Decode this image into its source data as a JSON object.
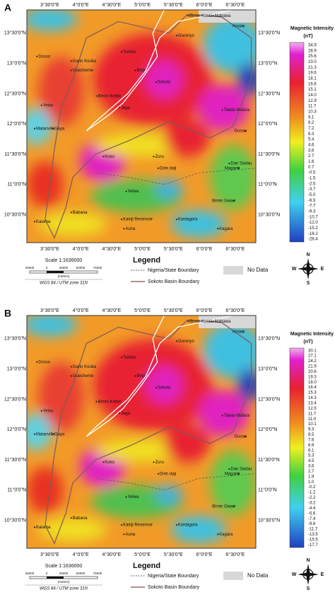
{
  "panels": [
    {
      "label": "A",
      "longitude_labels": [
        "3°30'0\"E",
        "4°0'0\"E",
        "4°30'0\"E",
        "5°0'0\"E",
        "5°30'0\"E",
        "6°0'0\"E",
        "6°30'0\"E"
      ],
      "latitude_labels": [
        "13°30'0\"N",
        "13°0'0\"N",
        "12°30'0\"N",
        "12°0'0\"N",
        "11°30'0\"N",
        "11°0'0\"N",
        "10°30'0\"N"
      ],
      "places": [
        "Birnin Konni",
        "Mahawa",
        "Amani",
        "Goronyo",
        "Dosso",
        "Garin Kouka",
        "Tombo",
        "Binji",
        "Sokoto",
        "Guecheme",
        "Talata Mafara",
        "Birnin Kebbi",
        "Yelou",
        "Jega",
        "Gusau",
        "Malanville",
        "Gaya",
        "Magami",
        "Koko",
        "Zuru",
        "Dan Sadau",
        "Dirin daji",
        "Yelwa",
        "Birnin Gwari",
        "Babana",
        "Kainji Reservoir",
        "Kontagora",
        "Kaiama",
        "Auna",
        "Kagara"
      ],
      "colorbar": {
        "title": "Magnetic Intensity",
        "unit": "(nT)",
        "labels": [
          "34.9",
          "28.9",
          "25.6",
          "23.0",
          "21.3",
          "19.6",
          "18.1",
          "16.6",
          "15.1",
          "14.0",
          "12.9",
          "11.7",
          "10.3",
          "9.1",
          "8.2",
          "7.2",
          "6.3",
          "5.4",
          "4.6",
          "3.6",
          "2.7",
          "1.6",
          "0.7",
          "-0.5",
          "-1.5",
          "-2.5",
          "-3.7",
          "-5.0",
          "-6.5",
          "-7.7",
          "-9.3",
          "-10.7",
          "-12.0",
          "-15.2",
          "-18.2",
          "-26.4"
        ]
      },
      "scale": {
        "text": "Scale 1:1636000",
        "ticks": [
          "25000",
          "0",
          "25000",
          "50000",
          "75000"
        ],
        "units": "(meters)",
        "projection": "WGS 84 / UTM zone 31N"
      },
      "legend": {
        "title": "Legend",
        "items": [
          "Nigeria/State Boundary",
          "Sokoto Basin Boundary",
          "No Data"
        ]
      },
      "north_arrow": [
        "N",
        "E",
        "S",
        "W"
      ]
    },
    {
      "label": "B",
      "longitude_labels": [
        "3°30'0\"E",
        "4°0'0\"E",
        "4°30'0\"E",
        "5°0'0\"E",
        "5°30'0\"E",
        "6°0'0\"E",
        "6°30'0\"E"
      ],
      "latitude_labels": [
        "13°30'0\"N",
        "13°0'0\"N",
        "12°30'0\"N",
        "12°0'0\"N",
        "11°30'0\"N",
        "11°0'0\"N",
        "10°30'0\"N"
      ],
      "places": [
        "Birnin Konni",
        "Mahawa",
        "Amani",
        "Goronyo",
        "Dosso",
        "Garin Kouka",
        "Tombo",
        "Binji",
        "Sokoto",
        "Guecheme",
        "Talata Mafara",
        "Birnin Kebbi",
        "Yelou",
        "Jega",
        "Gusau",
        "Malanville",
        "Gaya",
        "Magami",
        "Koko",
        "Zuru",
        "Dan Sadau",
        "Dirin daji",
        "Yelwa",
        "Birnin Gwari",
        "Babana",
        "Kainji Reservoir",
        "Kontagora",
        "Kaiama",
        "Auna",
        "Kagara"
      ],
      "colorbar": {
        "title": "Magnetic Intensity",
        "unit": "(nT)",
        "labels": [
          "30.1",
          "27.1",
          "24.2",
          "21.9",
          "20.6",
          "19.3",
          "18.0",
          "16.4",
          "15.3",
          "14.3",
          "13.4",
          "12.5",
          "11.7",
          "11.0",
          "10.1",
          "9.3",
          "8.5",
          "7.6",
          "6.9",
          "6.1",
          "5.3",
          "4.5",
          "3.6",
          "2.7",
          "1.9",
          "1.0",
          "-0.2",
          "-1.2",
          "-2.2",
          "-3.2",
          "-4.4",
          "-5.6",
          "-7.4",
          "-9.6",
          "-11.7",
          "-13.5",
          "-15.5",
          "-17.7"
        ]
      },
      "scale": {
        "text": "Scale 1:1636000",
        "ticks": [
          "25000",
          "0",
          "25000",
          "50000",
          "75000"
        ],
        "units": "(meters)",
        "projection": "WGS 84 / UTM zone 31N"
      },
      "legend": {
        "title": "Legend",
        "items": [
          "Nigeria/State Boundary",
          "Sokoto Basin Boundary",
          "No Data"
        ]
      },
      "north_arrow": [
        "N",
        "E",
        "S",
        "W"
      ]
    }
  ]
}
